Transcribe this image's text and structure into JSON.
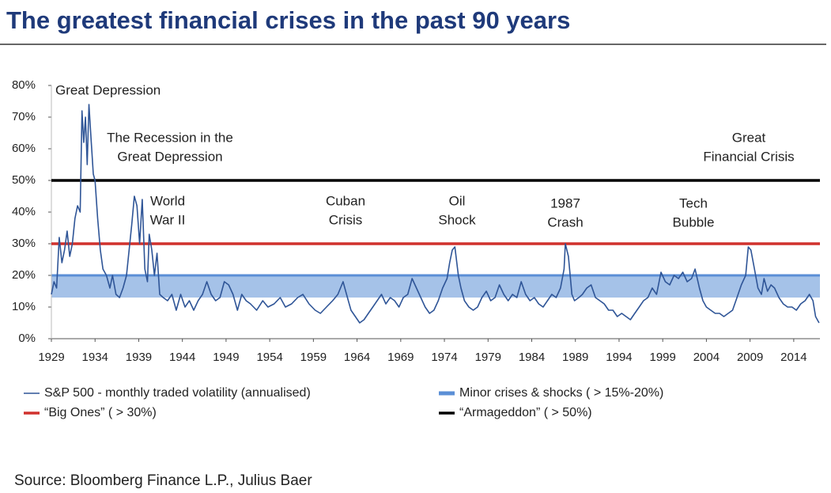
{
  "chart_data": {
    "type": "line",
    "title": "The greatest financial crises in the past 90 years",
    "source": "Source: Bloomberg Finance L.P., Julius Baer",
    "xlim": [
      1929,
      2017
    ],
    "xticks": [
      1929,
      1934,
      1939,
      1944,
      1949,
      1954,
      1959,
      1964,
      1969,
      1974,
      1979,
      1984,
      1989,
      1994,
      1999,
      2004,
      2009,
      2014
    ],
    "ylim": [
      0,
      80
    ],
    "yticks": [
      {
        "value": 0,
        "label": "0%"
      },
      {
        "value": 10,
        "label": "10%"
      },
      {
        "value": 20,
        "label": "20%"
      },
      {
        "value": 30,
        "label": "30%"
      },
      {
        "value": 40,
        "label": "40%"
      },
      {
        "value": 50,
        "label": "50%"
      },
      {
        "value": 60,
        "label": "60%"
      },
      {
        "value": 70,
        "label": "70%"
      },
      {
        "value": 80,
        "label": "80%"
      }
    ],
    "x": [
      1929.0,
      1929.3,
      1929.6,
      1929.9,
      1930.2,
      1930.5,
      1930.8,
      1931.1,
      1931.4,
      1931.7,
      1932.0,
      1932.3,
      1932.5,
      1932.7,
      1932.9,
      1933.1,
      1933.3,
      1933.5,
      1933.8,
      1934.0,
      1934.3,
      1934.6,
      1934.9,
      1935.3,
      1935.7,
      1936.0,
      1936.4,
      1936.8,
      1937.2,
      1937.6,
      1937.9,
      1938.2,
      1938.5,
      1938.8,
      1939.1,
      1939.4,
      1939.7,
      1940.0,
      1940.2,
      1940.5,
      1940.8,
      1941.1,
      1941.4,
      1941.8,
      1942.3,
      1942.8,
      1943.3,
      1943.8,
      1944.3,
      1944.8,
      1945.3,
      1945.8,
      1946.3,
      1946.8,
      1947.3,
      1947.8,
      1948.3,
      1948.8,
      1949.3,
      1949.8,
      1950.3,
      1950.8,
      1951.3,
      1951.8,
      1952.5,
      1953.2,
      1953.8,
      1954.5,
      1955.2,
      1955.8,
      1956.5,
      1957.2,
      1957.8,
      1958.5,
      1959.2,
      1959.8,
      1960.5,
      1961.2,
      1961.8,
      1962.4,
      1962.8,
      1963.3,
      1963.8,
      1964.3,
      1964.8,
      1965.3,
      1965.8,
      1966.3,
      1966.8,
      1967.3,
      1967.8,
      1968.3,
      1968.8,
      1969.3,
      1969.8,
      1970.3,
      1970.8,
      1971.3,
      1971.8,
      1972.3,
      1972.8,
      1973.3,
      1973.8,
      1974.3,
      1974.6,
      1974.9,
      1975.2,
      1975.6,
      1975.9,
      1976.3,
      1976.8,
      1977.3,
      1977.8,
      1978.3,
      1978.8,
      1979.3,
      1979.8,
      1980.3,
      1980.8,
      1981.3,
      1981.8,
      1982.3,
      1982.8,
      1983.3,
      1983.8,
      1984.3,
      1984.8,
      1985.3,
      1985.8,
      1986.3,
      1986.8,
      1987.3,
      1987.7,
      1987.85,
      1988.2,
      1988.6,
      1988.9,
      1989.4,
      1989.8,
      1990.3,
      1990.8,
      1991.3,
      1991.8,
      1992.3,
      1992.8,
      1993.3,
      1993.8,
      1994.3,
      1994.8,
      1995.3,
      1995.8,
      1996.3,
      1996.8,
      1997.3,
      1997.8,
      1998.3,
      1998.8,
      1999.3,
      1999.8,
      2000.3,
      2000.8,
      2001.3,
      2001.8,
      2002.3,
      2002.7,
      2003.2,
      2003.6,
      2004.0,
      2004.5,
      2005.0,
      2005.5,
      2006.0,
      2006.5,
      2007.0,
      2007.5,
      2008.0,
      2008.5,
      2008.8,
      2009.1,
      2009.5,
      2009.9,
      2010.3,
      2010.6,
      2011.0,
      2011.4,
      2011.8,
      2012.3,
      2012.8,
      2013.3,
      2013.8,
      2014.3,
      2014.8,
      2015.3,
      2015.8,
      2016.2,
      2016.5,
      2016.9
    ],
    "series": [
      {
        "name": "S&P 500 - monthly traded volatility (annualised)",
        "color": "#2f5597",
        "values": [
          14,
          18,
          16,
          32,
          24,
          28,
          34,
          26,
          30,
          38,
          42,
          40,
          72,
          62,
          70,
          55,
          74,
          65,
          52,
          50,
          38,
          28,
          22,
          20,
          16,
          20,
          14,
          13,
          16,
          20,
          28,
          36,
          45,
          42,
          30,
          44,
          22,
          18,
          33,
          28,
          20,
          27,
          14,
          13,
          12,
          14,
          9,
          14,
          10,
          12,
          9,
          12,
          14,
          18,
          14,
          12,
          13,
          18,
          17,
          14,
          9,
          14,
          12,
          11,
          9,
          12,
          10,
          11,
          13,
          10,
          11,
          13,
          14,
          11,
          9,
          8,
          10,
          12,
          14,
          18,
          14,
          9,
          7,
          5,
          6,
          8,
          10,
          12,
          14,
          11,
          13,
          12,
          10,
          13,
          14,
          19,
          16,
          13,
          10,
          8,
          9,
          12,
          16,
          19,
          24,
          28,
          29,
          20,
          16,
          12,
          10,
          9,
          10,
          13,
          15,
          12,
          13,
          17,
          14,
          12,
          14,
          13,
          18,
          14,
          12,
          13,
          11,
          10,
          12,
          14,
          13,
          16,
          22,
          30,
          26,
          14,
          12,
          13,
          14,
          16,
          17,
          13,
          12,
          11,
          9,
          9,
          7,
          8,
          7,
          6,
          8,
          10,
          12,
          13,
          16,
          14,
          21,
          18,
          17,
          20,
          19,
          21,
          18,
          19,
          22,
          16,
          12,
          10,
          9,
          8,
          8,
          7,
          8,
          9,
          13,
          17,
          20,
          29,
          28,
          22,
          16,
          14,
          19,
          15,
          17,
          16,
          13,
          11,
          10,
          10,
          9,
          11,
          12,
          14,
          12,
          7,
          5
        ]
      }
    ],
    "band": {
      "name": "Minor crises & shocks ( > 15%-20%)",
      "color": "#5b8fd6",
      "range": [
        13,
        20
      ]
    },
    "reference_lines": [
      {
        "name": "“Big Ones” ( > 30%)",
        "color": "#d0312d",
        "value": 30
      },
      {
        "name": "“Armageddon” ( > 50%)",
        "color": "#000000",
        "value": 50
      }
    ],
    "annotations": [
      [
        "Great Depression"
      ],
      [
        "The Recession in the",
        "Great Depression"
      ],
      [
        "World",
        "War II"
      ],
      [
        "Cuban",
        "Crisis"
      ],
      [
        "Oil",
        "Shock"
      ],
      [
        "1987",
        "Crash"
      ],
      [
        "Tech",
        "Bubble"
      ],
      [
        "Great",
        "Financial Crisis"
      ]
    ]
  }
}
